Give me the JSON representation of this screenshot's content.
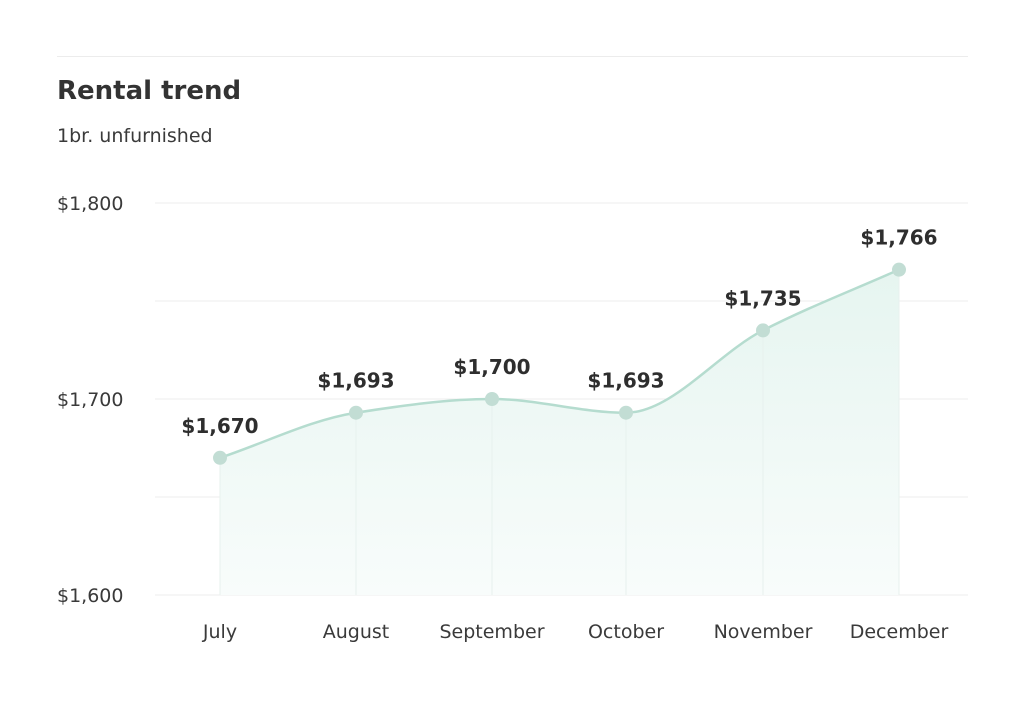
{
  "title": "Rental trend",
  "subtitle": "1br. unfurnished",
  "colors": {
    "line": "#b5dccf",
    "point": "#c2ddd4",
    "area_top": "#e6f5f0",
    "area_bottom": "#f8fcfb",
    "grid": "#eeeeee",
    "text": "#333333"
  },
  "chart_data": {
    "type": "area",
    "categories": [
      "July",
      "August",
      "September",
      "October",
      "November",
      "December"
    ],
    "values": [
      1670,
      1693,
      1700,
      1693,
      1735,
      1766
    ],
    "data_labels": [
      "$1,670",
      "$1,693",
      "$1,700",
      "$1,693",
      "$1,735",
      "$1,766"
    ],
    "ylim": [
      1600,
      1800
    ],
    "y_ticks": [
      1800,
      1700,
      1600
    ],
    "y_tick_labels": [
      "$1,800",
      "$1,700",
      "$1,600"
    ],
    "minor_gridlines": [
      1750,
      1650
    ],
    "grid": true,
    "smooth": true
  }
}
